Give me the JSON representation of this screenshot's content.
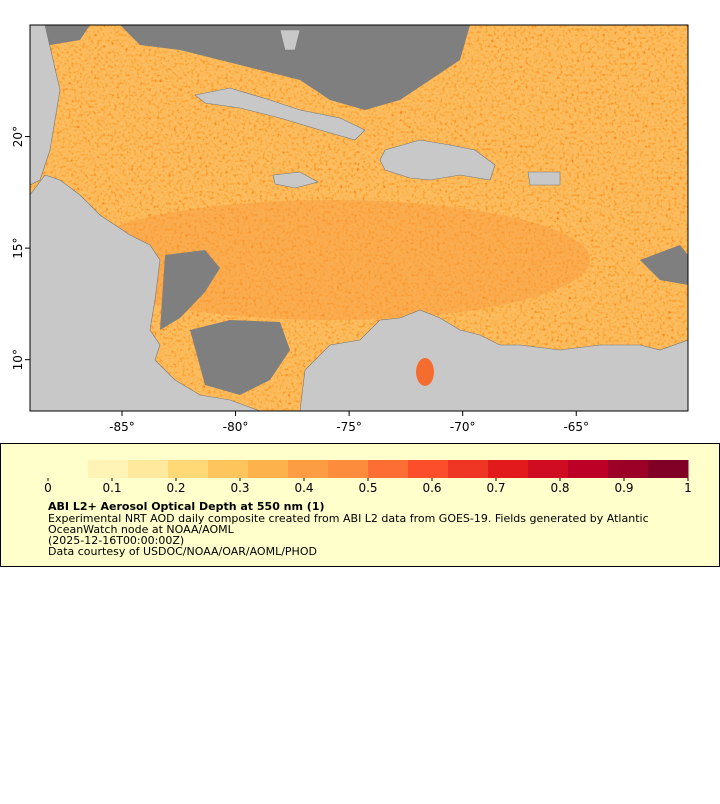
{
  "map": {
    "xlim": [
      -89.05,
      -60.08
    ],
    "ylim": [
      7.7,
      25.0
    ],
    "xticks": [
      {
        "value": -85,
        "label": "-85°"
      },
      {
        "value": -80,
        "label": "-80°"
      },
      {
        "value": -75,
        "label": "-75°"
      },
      {
        "value": -70,
        "label": "-70°"
      },
      {
        "value": -65,
        "label": "-65°"
      }
    ],
    "yticks": [
      {
        "value": 10,
        "label": "10°"
      },
      {
        "value": 15,
        "label": "15°"
      },
      {
        "value": 20,
        "label": "20°"
      }
    ]
  },
  "colorbar": {
    "range": [
      0,
      1
    ],
    "ticks": [
      0,
      0.1,
      0.2,
      0.3,
      0.4,
      0.5,
      0.6,
      0.7,
      0.8,
      0.9,
      1
    ],
    "colors": [
      "#ffffcc",
      "#fff4b5",
      "#ffe99d",
      "#fed976",
      "#fec55c",
      "#feb24c",
      "#fd9d43",
      "#fd8d3c",
      "#fc6e33",
      "#fc4e2a",
      "#ef3523",
      "#e31a1c",
      "#cf0c21",
      "#bd0026",
      "#9c0026",
      "#800026"
    ]
  },
  "legend": {
    "title": "ABI L2+ Aerosol Optical Depth at 550 nm (1)",
    "lines": [
      "Experimental NRT AOD daily composite created from ABI L2 data from GOES-19. Fields generated by Atlantic",
      "OceanWatch node at NOAA/AOML",
      "(2025-12-16T00:00:00Z)",
      "Data courtesy of USDOC/NOAA/OAR/AOML/PHOD"
    ]
  }
}
